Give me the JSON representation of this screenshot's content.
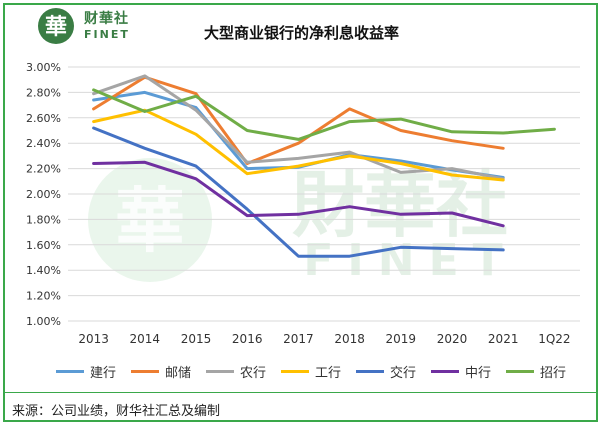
{
  "header": {
    "logo_cn": "财華社",
    "logo_en": "FINET",
    "logo_seal": "華",
    "title": "大型商业银行的净利息收益率"
  },
  "footer": {
    "source": "来源：公司业绩，财华社汇总及编制"
  },
  "watermark": {
    "cn": "財華社",
    "en": "FINET",
    "seal": "華"
  },
  "colors": {
    "frame": "#3aa84a",
    "logo": "#3a7d44",
    "建行": "#5b9bd5",
    "邮储": "#ed7d31",
    "农行": "#a5a5a5",
    "工行": "#ffc000",
    "交行": "#4472c4",
    "中行": "#7030a0",
    "招行": "#70ad47"
  },
  "chart_data": {
    "type": "line",
    "title": "大型商业银行的净利息收益率",
    "categories": [
      "2013",
      "2014",
      "2015",
      "2016",
      "2017",
      "2018",
      "2019",
      "2020",
      "2021",
      "1Q22"
    ],
    "y_ticks": [
      "3.00%",
      "2.80%",
      "2.60%",
      "2.40%",
      "2.20%",
      "2.00%",
      "1.80%",
      "1.60%",
      "1.40%",
      "1.20%",
      "1.00%"
    ],
    "ylim": [
      1.0,
      3.0
    ],
    "grid": true,
    "legend_position": "bottom",
    "series": [
      {
        "name": "建行",
        "color": "#5b9bd5",
        "values": [
          2.74,
          2.8,
          2.68,
          2.2,
          2.21,
          2.31,
          2.26,
          2.19,
          2.13,
          null
        ]
      },
      {
        "name": "邮储",
        "color": "#ed7d31",
        "values": [
          2.67,
          2.92,
          2.79,
          2.24,
          2.4,
          2.67,
          2.5,
          2.42,
          2.36,
          null
        ]
      },
      {
        "name": "农行",
        "color": "#a5a5a5",
        "values": [
          2.79,
          2.93,
          2.66,
          2.25,
          2.28,
          2.33,
          2.17,
          2.2,
          2.12,
          null
        ]
      },
      {
        "name": "工行",
        "color": "#ffc000",
        "values": [
          2.57,
          2.66,
          2.47,
          2.16,
          2.22,
          2.3,
          2.24,
          2.15,
          2.11,
          null
        ]
      },
      {
        "name": "交行",
        "color": "#4472c4",
        "values": [
          2.52,
          2.36,
          2.22,
          1.88,
          1.51,
          1.51,
          1.58,
          1.57,
          1.56,
          null
        ]
      },
      {
        "name": "中行",
        "color": "#7030a0",
        "values": [
          2.24,
          2.25,
          2.12,
          1.83,
          1.84,
          1.9,
          1.84,
          1.85,
          1.75,
          null
        ]
      },
      {
        "name": "招行",
        "color": "#70ad47",
        "values": [
          2.82,
          2.65,
          2.77,
          2.5,
          2.43,
          2.57,
          2.59,
          2.49,
          2.48,
          2.51
        ]
      }
    ]
  }
}
